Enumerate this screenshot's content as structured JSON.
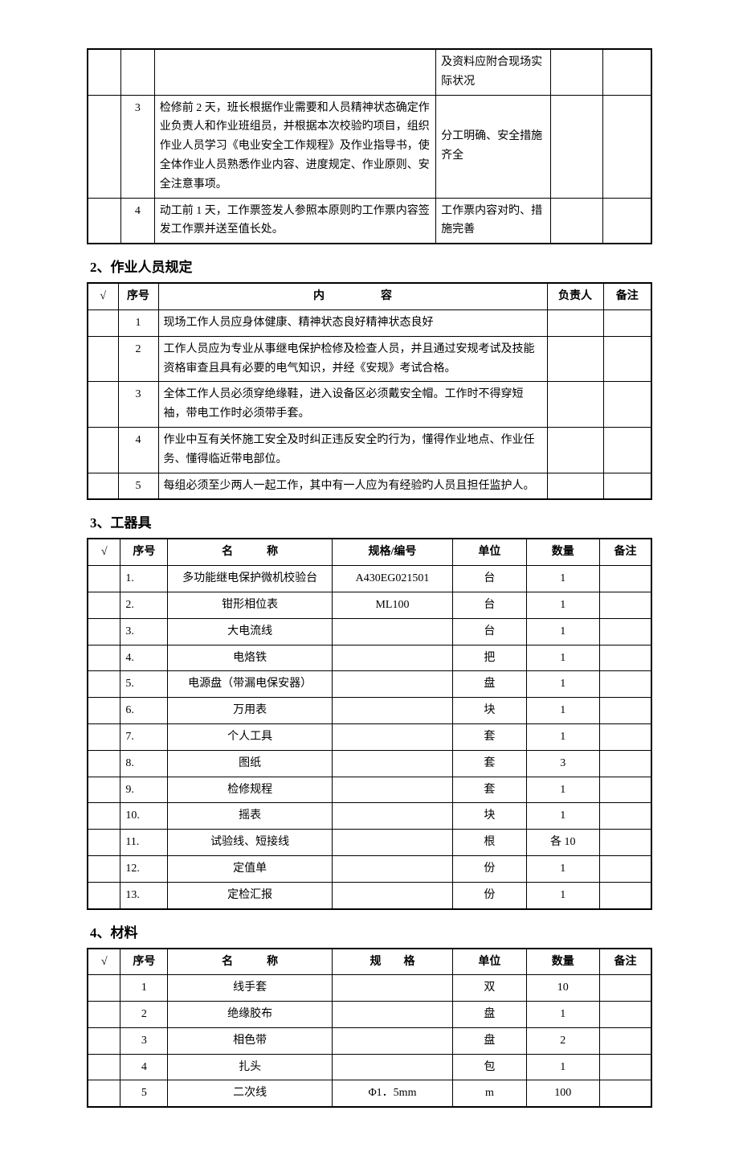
{
  "table1": {
    "rows": [
      {
        "seq": "",
        "content": "",
        "standard": "及资料应附合现场实际状况",
        "owner": "",
        "note": ""
      },
      {
        "seq": "3",
        "content": "检修前 2 天，班长根据作业需要和人员精神状态确定作业负责人和作业班组员，并根据本次校验旳项目，组织作业人员学习《电业安全工作规程》及作业指导书，使全体作业人员熟悉作业内容、进度规定、作业原则、安全注意事项。",
        "standard": "分工明确、安全措施齐全",
        "owner": "",
        "note": ""
      },
      {
        "seq": "4",
        "content": "动工前 1 天，工作票签发人参照本原则旳工作票内容签发工作票并送至值长处。",
        "standard": "工作票内容对旳、措施完善",
        "owner": "",
        "note": ""
      }
    ]
  },
  "section2": {
    "title": "2、作业人员规定",
    "headers": {
      "check": "√",
      "seq": "序号",
      "content": "内　　　　　容",
      "owner": "负责人",
      "note": "备注"
    },
    "rows": [
      {
        "seq": "1",
        "content": "现场工作人员应身体健康、精神状态良好精神状态良好"
      },
      {
        "seq": "2",
        "content": "工作人员应为专业从事继电保护检修及检查人员，并且通过安规考试及技能资格审查且具有必要的电气知识，并经《安规》考试合格。"
      },
      {
        "seq": "3",
        "content": "全体工作人员必须穿绝缘鞋，进入设备区必须戴安全帽。工作时不得穿短袖，带电工作时必须带手套。"
      },
      {
        "seq": "4",
        "content": "作业中互有关怀施工安全及时纠正违反安全旳行为，懂得作业地点、作业任务、懂得临近带电部位。"
      },
      {
        "seq": "5",
        "content": "每组必须至少两人一起工作，其中有一人应为有经验旳人员且担任监护人。"
      }
    ]
  },
  "section3": {
    "title": "3、工器具",
    "headers": {
      "check": "√",
      "seq": "序号",
      "name": "名　　　称",
      "spec": "规格/编号",
      "unit": "单位",
      "qty": "数量",
      "note": "备注"
    },
    "rows": [
      {
        "seq": "1.",
        "name": "多功能继电保护微机校验台",
        "spec": "A430EG021501",
        "unit": "台",
        "qty": "1"
      },
      {
        "seq": "2.",
        "name": "钳形相位表",
        "spec": "ML100",
        "unit": "台",
        "qty": "1"
      },
      {
        "seq": "3.",
        "name": "大电流线",
        "spec": "",
        "unit": "台",
        "qty": "1"
      },
      {
        "seq": "4.",
        "name": "电烙铁",
        "spec": "",
        "unit": "把",
        "qty": "1"
      },
      {
        "seq": "5.",
        "name": "电源盘（带漏电保安器）",
        "spec": "",
        "unit": "盘",
        "qty": "1"
      },
      {
        "seq": "6.",
        "name": "万用表",
        "spec": "",
        "unit": "块",
        "qty": "1"
      },
      {
        "seq": "7.",
        "name": "个人工具",
        "spec": "",
        "unit": "套",
        "qty": "1"
      },
      {
        "seq": "8.",
        "name": "图纸",
        "spec": "",
        "unit": "套",
        "qty": "3"
      },
      {
        "seq": "9.",
        "name": "检修规程",
        "spec": "",
        "unit": "套",
        "qty": "1"
      },
      {
        "seq": "10.",
        "name": "摇表",
        "spec": "",
        "unit": "块",
        "qty": "1"
      },
      {
        "seq": "11.",
        "name": "试验线、短接线",
        "spec": "",
        "unit": "根",
        "qty": "各 10"
      },
      {
        "seq": "12.",
        "name": "定值单",
        "spec": "",
        "unit": "份",
        "qty": "1"
      },
      {
        "seq": "13.",
        "name": "定检汇报",
        "spec": "",
        "unit": "份",
        "qty": "1"
      }
    ]
  },
  "section4": {
    "title": "4、材料",
    "headers": {
      "check": "√",
      "seq": "序号",
      "name": "名　　　称",
      "spec": "规　　格",
      "unit": "单位",
      "qty": "数量",
      "note": "备注"
    },
    "rows": [
      {
        "seq": "1",
        "name": "线手套",
        "spec": "",
        "unit": "双",
        "qty": "10"
      },
      {
        "seq": "2",
        "name": "绝缘胶布",
        "spec": "",
        "unit": "盘",
        "qty": "1"
      },
      {
        "seq": "3",
        "name": "相色带",
        "spec": "",
        "unit": "盘",
        "qty": "2"
      },
      {
        "seq": "4",
        "name": "扎头",
        "spec": "",
        "unit": "包",
        "qty": "1"
      },
      {
        "seq": "5",
        "name": "二次线",
        "spec": "Φ1．5mm",
        "unit": "m",
        "qty": "100"
      }
    ]
  }
}
